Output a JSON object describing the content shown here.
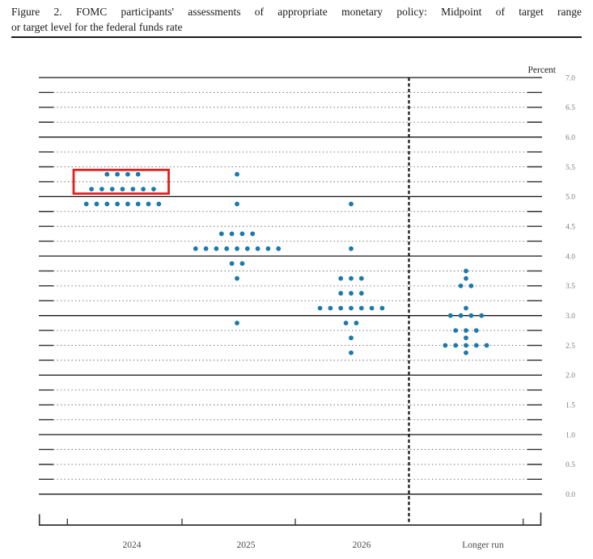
{
  "figure": {
    "title_line1": "Figure 2.  FOMC participants' assessments of appropriate monetary policy:  Midpoint of target range",
    "title_line2": "or target level for the federal funds rate"
  },
  "chart_data": {
    "type": "scatter",
    "subtype": "fomc-dot-plot",
    "title": "FOMC participants' assessments of appropriate monetary policy: Midpoint of target range or target level for the federal funds rate",
    "unit_label": "Percent",
    "ylabel": "Percent",
    "ylim": [
      0.0,
      7.0
    ],
    "grid_step": 0.25,
    "grid": "on",
    "legend_position": "none",
    "y_tick_labels": [
      "7.0",
      "6.5",
      "6.0",
      "5.5",
      "5.0",
      "4.5",
      "4.0",
      "3.5",
      "3.0",
      "2.5",
      "2.0",
      "1.5",
      "1.0",
      "0.5",
      "0.0"
    ],
    "categories": [
      "2024",
      "2025",
      "2026",
      "Longer run"
    ],
    "series": [
      {
        "name": "2024",
        "dots": [
          {
            "rate": 5.375,
            "count": 4
          },
          {
            "rate": 5.125,
            "count": 7
          },
          {
            "rate": 4.875,
            "count": 8
          }
        ]
      },
      {
        "name": "2025",
        "dots": [
          {
            "rate": 5.375,
            "count": 1
          },
          {
            "rate": 4.875,
            "count": 1
          },
          {
            "rate": 4.375,
            "count": 4
          },
          {
            "rate": 4.125,
            "count": 9
          },
          {
            "rate": 3.875,
            "count": 2
          },
          {
            "rate": 3.625,
            "count": 1
          },
          {
            "rate": 2.875,
            "count": 1
          }
        ]
      },
      {
        "name": "2026",
        "dots": [
          {
            "rate": 4.875,
            "count": 1
          },
          {
            "rate": 4.125,
            "count": 1
          },
          {
            "rate": 3.625,
            "count": 3
          },
          {
            "rate": 3.375,
            "count": 3
          },
          {
            "rate": 3.125,
            "count": 7
          },
          {
            "rate": 2.875,
            "count": 2
          },
          {
            "rate": 2.625,
            "count": 1
          },
          {
            "rate": 2.375,
            "count": 1
          }
        ]
      },
      {
        "name": "Longer run",
        "dots": [
          {
            "rate": 3.75,
            "count": 1
          },
          {
            "rate": 3.625,
            "count": 1
          },
          {
            "rate": 3.5,
            "count": 2
          },
          {
            "rate": 3.125,
            "count": 1
          },
          {
            "rate": 3.0,
            "count": 4
          },
          {
            "rate": 2.75,
            "count": 3
          },
          {
            "rate": 2.625,
            "count": 1
          },
          {
            "rate": 2.5,
            "count": 5
          },
          {
            "rate": 2.375,
            "count": 1
          }
        ]
      }
    ],
    "annotations": [
      {
        "type": "highlight-box",
        "category": "2024",
        "rates_covered": [
          5.375,
          5.125
        ],
        "color": "#e61d1d"
      }
    ],
    "colors": {
      "dot": "#1b79ab",
      "highlight": "#e61d1d",
      "solid_grid": "#161616",
      "dotted_grid": "#6a6a6a",
      "axis": "#4a4a4a",
      "tick_label": "#808080",
      "year_label": "#4a4a4a"
    }
  }
}
